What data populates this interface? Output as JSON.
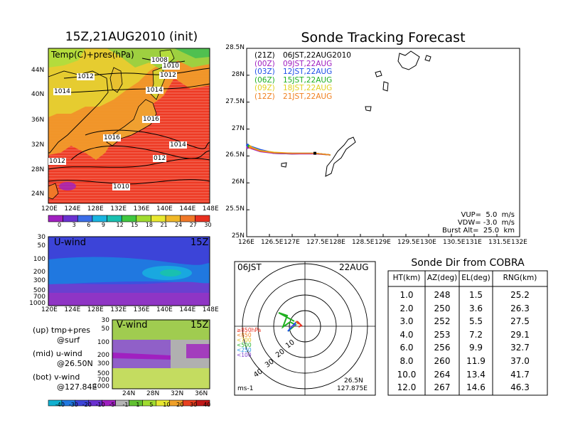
{
  "left_map": {
    "title": "15Z,21AUG2010 (init)",
    "subtitle": "Temp(C)+pres(hPa)",
    "lat_labels": [
      "44N",
      "40N",
      "36N",
      "32N",
      "28N",
      "24N"
    ],
    "lon_labels": [
      "120E",
      "124E",
      "128E",
      "132E",
      "136E",
      "140E",
      "144E",
      "148E"
    ],
    "isobar_labels": [
      "1008",
      "1010",
      "1012",
      "1012",
      "1014",
      "1014",
      "1016",
      "1016",
      "1014",
      "012",
      "1012",
      "1010"
    ],
    "colorbar_labels": [
      "0",
      "3",
      "6",
      "9",
      "12",
      "15",
      "18",
      "21",
      "24",
      "27",
      "30"
    ],
    "colorbar_colors": [
      "#a020c0",
      "#6a32d0",
      "#3b6ee8",
      "#19b4e0",
      "#19c0b0",
      "#40c840",
      "#a0dc30",
      "#e8e830",
      "#f0b828",
      "#f07828",
      "#e83020"
    ]
  },
  "uwind": {
    "title": "U-wind",
    "time": "15Z",
    "p_labels": [
      "30",
      "50",
      "100",
      "200",
      "300",
      "500",
      "700",
      "1000"
    ],
    "lon_labels": [
      "120E",
      "124E",
      "128E",
      "132E",
      "136E",
      "140E",
      "144E",
      "148E"
    ]
  },
  "vwind": {
    "title": "V-wind",
    "time": "15Z",
    "p_labels": [
      "30",
      "50",
      "100",
      "200",
      "300",
      "500",
      "700",
      "1000"
    ],
    "lat_labels": [
      "24N",
      "28N",
      "32N",
      "36N"
    ]
  },
  "notes": {
    "up": "(up) tmp+pres",
    "up2": "@surf",
    "mid": "(mid) u-wind",
    "mid2": "@26.50N",
    "bot": "(bot) v-wind",
    "bot2": "@127.84E"
  },
  "wind_colorbar": {
    "labels": [
      "-40",
      "-30",
      "-20",
      "-10",
      "-5",
      "-1",
      "1",
      "5",
      "10",
      "20",
      "30",
      "40"
    ],
    "colors": [
      "#10b0d0",
      "#2078e0",
      "#3c44d8",
      "#6a30d0",
      "#a020c0",
      "#b4b4b4",
      "#60c030",
      "#a0dc30",
      "#e8e830",
      "#f0a028",
      "#e84020",
      "#c01818"
    ]
  },
  "track": {
    "title": "Sonde Tracking Forecast",
    "lat_labels": [
      "28.5N",
      "28N",
      "27.5N",
      "27N",
      "26.5N",
      "26N",
      "25.5N",
      "25N"
    ],
    "lon_labels": [
      "126E",
      "126.5E",
      "127E",
      "127.5E",
      "128E",
      "128.5E",
      "129E",
      "129.5E",
      "130E",
      "130.5E",
      "131E",
      "131.5E",
      "132E"
    ],
    "legend": [
      {
        "code": "(21Z)",
        "label": "06JST,22AUG2010",
        "color": "#000000"
      },
      {
        "code": "(00Z)",
        "label": "09JST,22AUG",
        "color": "#a020c0"
      },
      {
        "code": "(03Z)",
        "label": "12JST,22AUG",
        "color": "#1e50e8"
      },
      {
        "code": "(06Z)",
        "label": "15JST,22AUG",
        "color": "#20b020"
      },
      {
        "code": "(09Z)",
        "label": "18JST,22AUG",
        "color": "#e0d020"
      },
      {
        "code": "(12Z)",
        "label": "21JST,22AUG",
        "color": "#f08020"
      }
    ],
    "params": [
      "VUP=  5.0  m/s",
      "VDW= -3.0  m/s",
      "Burst Alt=  25.0  km"
    ]
  },
  "chart_data": {
    "type": "line",
    "title": "Sonde Tracking Forecast",
    "xlim": [
      126,
      132
    ],
    "ylim": [
      25,
      28.5
    ],
    "series": [
      {
        "name": "(21Z) 06JST,22AUG2010",
        "x": [
          126.02,
          126.3,
          126.6,
          127.0,
          127.5,
          127.84
        ],
        "y": [
          26.7,
          26.6,
          26.55,
          26.54,
          26.55,
          26.52
        ]
      },
      {
        "name": "(00Z) 09JST,22AUG",
        "x": [
          126.02,
          126.3,
          126.6,
          127.0,
          127.5,
          127.84
        ],
        "y": [
          26.66,
          26.58,
          26.55,
          26.54,
          26.54,
          26.52
        ]
      },
      {
        "name": "(03Z) 12JST,22AUG",
        "x": [
          126.02,
          126.3,
          126.6,
          127.0,
          127.5,
          127.84
        ],
        "y": [
          26.7,
          26.62,
          26.56,
          26.55,
          26.55,
          26.52
        ]
      },
      {
        "name": "(06Z) 15JST,22AUG",
        "x": [
          126.05,
          126.3,
          126.6,
          127.0,
          127.5,
          127.84
        ],
        "y": [
          26.68,
          26.6,
          26.56,
          26.55,
          26.55,
          26.52
        ]
      },
      {
        "name": "(09Z) 18JST,22AUG",
        "x": [
          126.08,
          126.3,
          126.6,
          127.0,
          127.5,
          127.84
        ],
        "y": [
          26.67,
          26.6,
          26.57,
          26.55,
          26.55,
          26.52
        ]
      },
      {
        "name": "(12Z) 21JST,22AUG",
        "x": [
          126.08,
          126.3,
          126.6,
          127.0,
          127.5,
          127.84
        ],
        "y": [
          26.66,
          26.59,
          26.56,
          26.55,
          26.55,
          26.52
        ]
      }
    ]
  },
  "polar": {
    "time": "06JST",
    "date": "22AUG",
    "location": [
      "26.5N",
      "127.875E"
    ],
    "units": "ms-1",
    "ring_labels": [
      "10",
      "20",
      "30",
      "40"
    ],
    "legend": [
      {
        "label": "≥850hPa",
        "color": "#e83020"
      },
      {
        "label": "<850",
        "color": "#f08020"
      },
      {
        "label": "<700",
        "color": "#e0c020"
      },
      {
        "label": "<500",
        "color": "#20b020"
      },
      {
        "label": "<250",
        "color": "#1e90e0"
      },
      {
        "label": "<100",
        "color": "#8040d0"
      }
    ]
  },
  "sonde_table": {
    "title": "Sonde Dir from COBRA",
    "headers": [
      "HT(km)",
      "AZ(deg)",
      "EL(deg)",
      "RNG(km)"
    ],
    "rows": [
      [
        "1.0",
        "248",
        "1.5",
        "25.2"
      ],
      [
        "2.0",
        "250",
        "3.6",
        "26.3"
      ],
      [
        "3.0",
        "252",
        "5.5",
        "27.5"
      ],
      [
        "4.0",
        "253",
        "7.2",
        "29.1"
      ],
      [
        "6.0",
        "256",
        "9.9",
        "32.7"
      ],
      [
        "8.0",
        "260",
        "11.9",
        "37.0"
      ],
      [
        "10.0",
        "264",
        "13.4",
        "41.7"
      ],
      [
        "12.0",
        "267",
        "14.6",
        "46.3"
      ]
    ]
  }
}
